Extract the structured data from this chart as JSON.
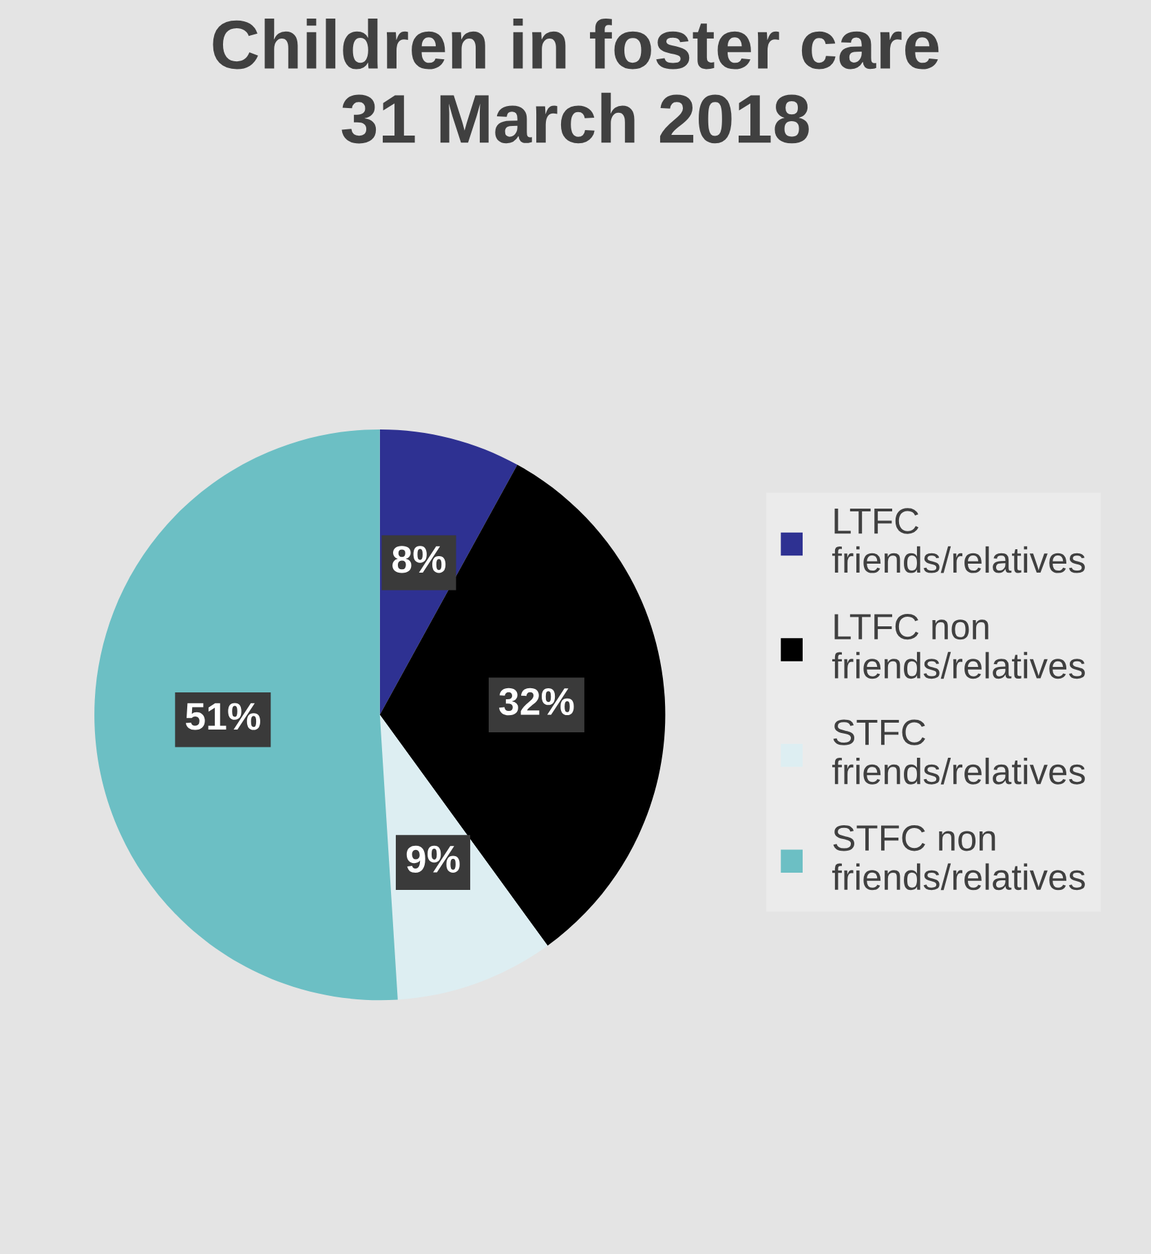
{
  "chart_data": {
    "type": "pie",
    "title": "Children in foster care\n31 March 2018",
    "categories": [
      "LTFC friends/relatives",
      "LTFC non friends/relatives",
      "STFC friends/relatives",
      "STFC non friends/relatives"
    ],
    "values": [
      8,
      32,
      9,
      51
    ],
    "colors": [
      "#2e3192",
      "#000000",
      "#ddeef2",
      "#6cbfc4"
    ],
    "value_labels": [
      "8%",
      "32%",
      "9%",
      "51%"
    ],
    "legend": "right"
  }
}
